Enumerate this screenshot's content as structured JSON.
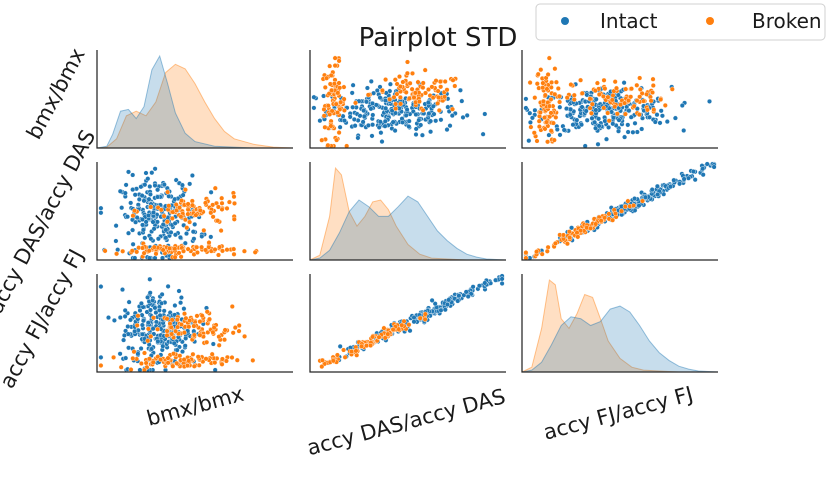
{
  "chart_data": {
    "type": "pairplot",
    "title": "Pairplot STD",
    "variables": [
      "bmx/bmx",
      "accy DAS/accy DAS",
      "accy FJ/accy FJ"
    ],
    "row_labels": [
      "bmx/bmx",
      "accy DAS/accy DAS",
      "accy FJ/accy FJ"
    ],
    "col_labels": [
      "bmx/bmx",
      "accy DAS/accy DAS",
      "accy FJ/accy FJ"
    ],
    "legend": {
      "position": "top-right",
      "entries": [
        {
          "name": "Intact",
          "color": "#1f77b4"
        },
        {
          "name": "Broken",
          "color": "#ff7f0e"
        }
      ]
    },
    "tick_labels_shown": false,
    "series": [
      {
        "name": "Intact",
        "color": "#1f77b4",
        "kde": {
          "bmx/bmx": {
            "x": [
              0.0,
              0.05,
              0.08,
              0.12,
              0.16,
              0.2,
              0.24,
              0.28,
              0.32,
              0.36,
              0.4,
              0.45,
              0.5,
              0.6,
              0.7,
              0.8,
              1.0
            ],
            "density": [
              0.0,
              0.02,
              0.15,
              0.4,
              0.42,
              0.32,
              0.45,
              0.85,
              1.0,
              0.7,
              0.38,
              0.16,
              0.07,
              0.02,
              0.01,
              0.0,
              0.0
            ]
          },
          "accy DAS/accy DAS": {
            "x": [
              0.0,
              0.05,
              0.1,
              0.15,
              0.2,
              0.25,
              0.3,
              0.35,
              0.4,
              0.45,
              0.5,
              0.55,
              0.6,
              0.65,
              0.7,
              0.75,
              0.8,
              0.85,
              0.9,
              1.0
            ],
            "density": [
              0.0,
              0.02,
              0.1,
              0.28,
              0.5,
              0.62,
              0.55,
              0.45,
              0.45,
              0.55,
              0.66,
              0.6,
              0.45,
              0.3,
              0.2,
              0.12,
              0.06,
              0.03,
              0.01,
              0.0
            ]
          },
          "accy FJ/accy FJ": {
            "x": [
              0.0,
              0.05,
              0.1,
              0.15,
              0.2,
              0.25,
              0.3,
              0.35,
              0.4,
              0.45,
              0.5,
              0.55,
              0.6,
              0.65,
              0.7,
              0.75,
              0.8,
              0.85,
              0.9,
              1.0
            ],
            "density": [
              0.0,
              0.02,
              0.1,
              0.28,
              0.48,
              0.57,
              0.55,
              0.48,
              0.52,
              0.65,
              0.68,
              0.62,
              0.48,
              0.32,
              0.2,
              0.12,
              0.06,
              0.03,
              0.01,
              0.0
            ]
          }
        }
      },
      {
        "name": "Broken",
        "color": "#ff7f0e",
        "kde": {
          "bmx/bmx": {
            "x": [
              0.0,
              0.05,
              0.1,
              0.15,
              0.2,
              0.25,
              0.3,
              0.35,
              0.4,
              0.45,
              0.5,
              0.55,
              0.6,
              0.65,
              0.7,
              0.8,
              0.9,
              1.0
            ],
            "density": [
              0.0,
              0.01,
              0.1,
              0.35,
              0.4,
              0.35,
              0.5,
              0.82,
              0.91,
              0.86,
              0.7,
              0.5,
              0.32,
              0.18,
              0.1,
              0.04,
              0.01,
              0.0
            ]
          },
          "accy DAS/accy DAS": {
            "x": [
              0.0,
              0.05,
              0.1,
              0.13,
              0.16,
              0.2,
              0.24,
              0.28,
              0.32,
              0.36,
              0.4,
              0.44,
              0.5,
              0.56,
              0.62,
              0.7,
              0.8,
              1.0
            ],
            "density": [
              0.0,
              0.05,
              0.45,
              0.95,
              0.88,
              0.5,
              0.35,
              0.45,
              0.6,
              0.62,
              0.52,
              0.35,
              0.16,
              0.06,
              0.02,
              0.01,
              0.0,
              0.0
            ]
          },
          "accy FJ/accy FJ": {
            "x": [
              0.0,
              0.05,
              0.1,
              0.14,
              0.17,
              0.2,
              0.24,
              0.28,
              0.32,
              0.36,
              0.4,
              0.44,
              0.5,
              0.56,
              0.62,
              0.7,
              0.8,
              1.0
            ],
            "density": [
              0.0,
              0.05,
              0.45,
              0.95,
              0.9,
              0.55,
              0.45,
              0.6,
              0.8,
              0.77,
              0.55,
              0.32,
              0.14,
              0.05,
              0.02,
              0.01,
              0.0,
              0.0
            ]
          }
        }
      }
    ],
    "scatter_clusters": {
      "Intact": [
        {
          "xvar": "bmx/bmx",
          "yvar": "accy DAS/accy DAS",
          "cx": 0.32,
          "cy": 0.45,
          "sx": 0.1,
          "sy": 0.2,
          "n": 260
        },
        {
          "xvar": "bmx/bmx",
          "yvar": "accy FJ/accy FJ",
          "cx": 0.32,
          "cy": 0.45,
          "sx": 0.1,
          "sy": 0.2,
          "n": 260
        },
        {
          "xvar": "accy DAS/accy DAS",
          "yvar": "bmx/bmx",
          "cx": 0.42,
          "cy": 0.38,
          "sx": 0.17,
          "sy": 0.12,
          "n": 260
        },
        {
          "xvar": "accy FJ/accy FJ",
          "yvar": "bmx/bmx",
          "cx": 0.42,
          "cy": 0.38,
          "sx": 0.17,
          "sy": 0.12,
          "n": 260
        },
        {
          "xvar": "accy DAS/accy DAS",
          "yvar": "accy FJ/accy FJ",
          "cx": 0.55,
          "cy": 0.55,
          "sx": 0.2,
          "sy": 0.2,
          "n": 220,
          "diagonal": true
        },
        {
          "xvar": "accy FJ/accy FJ",
          "yvar": "accy DAS/accy DAS",
          "cx": 0.55,
          "cy": 0.55,
          "sx": 0.2,
          "sy": 0.2,
          "n": 220,
          "diagonal": true
        }
      ],
      "Broken": [
        {
          "xvar": "bmx/bmx",
          "yvar": "accy DAS/accy DAS",
          "cx": 0.4,
          "cy": 0.1,
          "sx": 0.15,
          "sy": 0.03,
          "n": 90
        },
        {
          "xvar": "bmx/bmx",
          "yvar": "accy DAS/accy DAS",
          "cx": 0.5,
          "cy": 0.5,
          "sx": 0.12,
          "sy": 0.08,
          "n": 90
        },
        {
          "xvar": "bmx/bmx",
          "yvar": "accy FJ/accy FJ",
          "cx": 0.4,
          "cy": 0.12,
          "sx": 0.15,
          "sy": 0.04,
          "n": 90
        },
        {
          "xvar": "bmx/bmx",
          "yvar": "accy FJ/accy FJ",
          "cx": 0.5,
          "cy": 0.45,
          "sx": 0.12,
          "sy": 0.08,
          "n": 90
        },
        {
          "xvar": "accy DAS/accy DAS",
          "yvar": "bmx/bmx",
          "cx": 0.12,
          "cy": 0.45,
          "sx": 0.03,
          "sy": 0.2,
          "n": 90
        },
        {
          "xvar": "accy DAS/accy DAS",
          "yvar": "bmx/bmx",
          "cx": 0.55,
          "cy": 0.55,
          "sx": 0.12,
          "sy": 0.1,
          "n": 90
        },
        {
          "xvar": "accy FJ/accy FJ",
          "yvar": "bmx/bmx",
          "cx": 0.12,
          "cy": 0.45,
          "sx": 0.03,
          "sy": 0.2,
          "n": 90
        },
        {
          "xvar": "accy FJ/accy FJ",
          "yvar": "bmx/bmx",
          "cx": 0.5,
          "cy": 0.5,
          "sx": 0.12,
          "sy": 0.1,
          "n": 90
        },
        {
          "xvar": "accy DAS/accy DAS",
          "yvar": "accy FJ/accy FJ",
          "cx": 0.3,
          "cy": 0.3,
          "sx": 0.12,
          "sy": 0.12,
          "n": 90,
          "diagonal": true
        },
        {
          "xvar": "accy FJ/accy FJ",
          "yvar": "accy DAS/accy DAS",
          "cx": 0.3,
          "cy": 0.3,
          "sx": 0.12,
          "sy": 0.12,
          "n": 90,
          "diagonal": true
        }
      ]
    }
  }
}
